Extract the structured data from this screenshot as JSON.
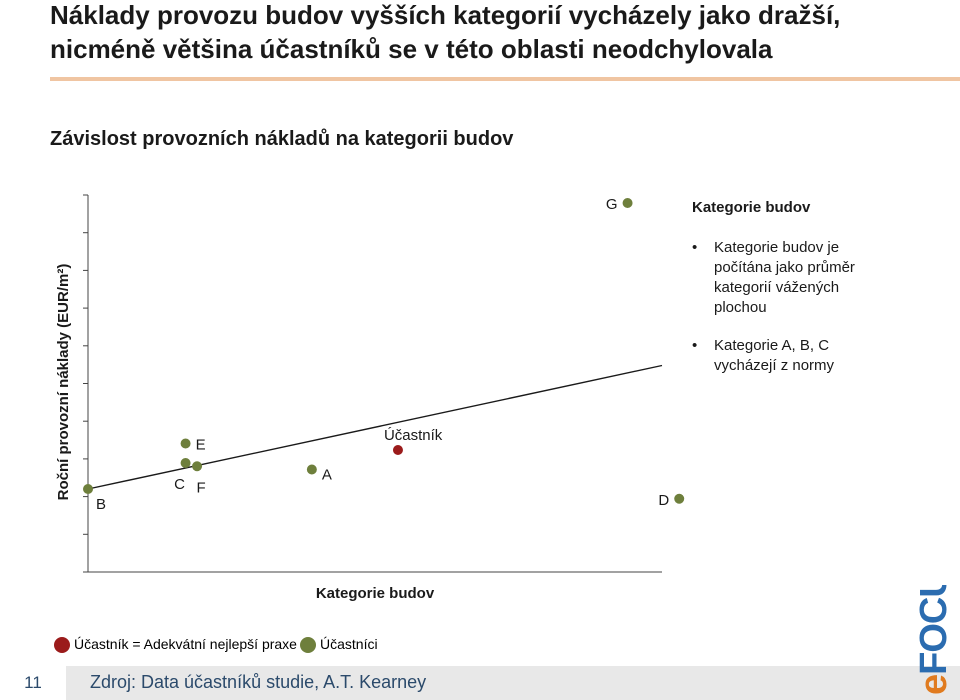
{
  "slide": {
    "title": "Náklady provozu budov vyšších kategorií vycházely jako dražší, nicméně většina účastníků se v této oblasti neodchylovala",
    "subtitle": "Závislost provozních nákladů na kategorii budov",
    "page_number": "11",
    "source": "Zdroj: Data účastníků studie, A.T. Kearney",
    "info_title": "Kategorie budov",
    "bullets": [
      "Kategorie budov je počítána jako průměr kategorií vážených plochou",
      "Kategorie A, B, C vycházejí z normy"
    ],
    "legend": [
      {
        "label": "Účastník = Adekvátní nejlepší praxe",
        "color": "#9b1b1b"
      },
      {
        "label": "Účastníci",
        "color": "#6e7f3c"
      }
    ],
    "logo_text": "eFOCUS",
    "colors": {
      "accent": "#f0c5a2",
      "participant": "#6e7f3c",
      "best": "#9b1b1b",
      "footer_text": "#2b4a6b"
    }
  },
  "chart_data": {
    "type": "scatter",
    "xlabel": "Kategorie budov",
    "ylabel": "Roční provozní náklady (EUR/m²)",
    "xlim": [
      0,
      1
    ],
    "ylim": [
      0,
      1
    ],
    "grid": false,
    "legend_position": "bottom",
    "points": [
      {
        "label": "B",
        "x": 0.0,
        "y": 0.12,
        "series": "Účastníci"
      },
      {
        "label": "C",
        "x": 0.17,
        "y": 0.2,
        "series": "Účastníci"
      },
      {
        "label": "F",
        "x": 0.19,
        "y": 0.19,
        "series": "Účastníci"
      },
      {
        "label": "E",
        "x": 0.17,
        "y": 0.26,
        "series": "Účastníci"
      },
      {
        "label": "A",
        "x": 0.39,
        "y": 0.18,
        "series": "Účastníci"
      },
      {
        "label": "Účastník",
        "x": 0.54,
        "y": 0.24,
        "series": "Účastník = Adekvátní nejlepší praxe"
      },
      {
        "label": "G",
        "x": 0.94,
        "y": 1.0,
        "series": "Účastníci"
      },
      {
        "label": "D",
        "x": 1.03,
        "y": 0.09,
        "series": "Účastníci"
      }
    ],
    "trendline": {
      "x": [
        0,
        1
      ],
      "y": [
        0.12,
        0.5
      ]
    }
  }
}
